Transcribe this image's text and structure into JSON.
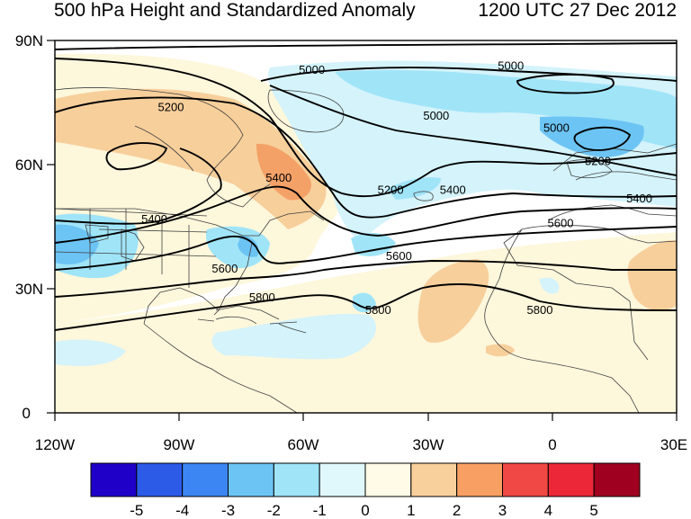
{
  "title_left": "500 hPa Height and Standardized Anomaly",
  "title_right": "1200 UTC 27 Dec 2012",
  "map": {
    "lat_ticks": [
      "90N",
      "60N",
      "30N",
      "0"
    ],
    "lon_ticks": [
      "120W",
      "90W",
      "60W",
      "30W",
      "0",
      "30E"
    ],
    "lon_range": [
      -120,
      30
    ],
    "lat_range": [
      0,
      90
    ],
    "contour_labels": [
      {
        "text": "5000",
        "lon": -58,
        "lat": 83
      },
      {
        "text": "5000",
        "lon": -28,
        "lat": 72
      },
      {
        "text": "5000",
        "lon": -10,
        "lat": 84
      },
      {
        "text": "5000",
        "lon": 1,
        "lat": 69
      },
      {
        "text": "5200",
        "lon": -92,
        "lat": 74
      },
      {
        "text": "5200",
        "lon": 11,
        "lat": 61
      },
      {
        "text": "5200",
        "lon": -39,
        "lat": 54
      },
      {
        "text": "5400",
        "lon": -66,
        "lat": 57
      },
      {
        "text": "5400",
        "lon": -96,
        "lat": 47
      },
      {
        "text": "5400",
        "lon": -24,
        "lat": 54
      },
      {
        "text": "5400",
        "lon": 21,
        "lat": 52
      },
      {
        "text": "5600",
        "lon": -37,
        "lat": 38
      },
      {
        "text": "5600",
        "lon": 2,
        "lat": 46
      },
      {
        "text": "5600",
        "lon": -79,
        "lat": 35
      },
      {
        "text": "5800",
        "lon": -70,
        "lat": 28
      },
      {
        "text": "5800",
        "lon": -42,
        "lat": 25
      },
      {
        "text": "5800",
        "lon": -3,
        "lat": 25
      }
    ]
  },
  "colorbar": {
    "labels": [
      "-5",
      "-4",
      "-3",
      "-2",
      "-1",
      "0",
      "1",
      "2",
      "3",
      "4",
      "5"
    ],
    "colors": [
      "#1e00c8",
      "#2c5be8",
      "#3c86f4",
      "#6cc4f4",
      "#a0e4f8",
      "#e0f8fc",
      "#fffbe6",
      "#f8d09c",
      "#f8a064",
      "#f04844",
      "#ec2838",
      "#a00020"
    ]
  },
  "colors": {
    "neg1": "#d4f3fb",
    "neg2": "#a0e4f8",
    "neg3": "#6cc4f4",
    "pos1": "#fdf7dc",
    "pos2": "#f7cf9b",
    "pos3": "#f4a168"
  }
}
